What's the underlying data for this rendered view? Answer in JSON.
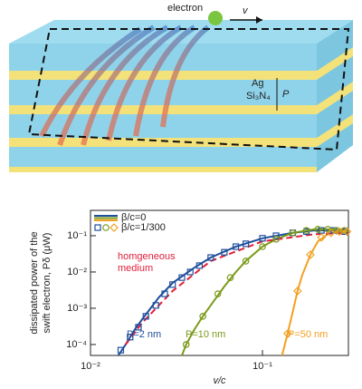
{
  "illustration": {
    "electron": "electron",
    "velocity": "v",
    "layer_metal": "Ag",
    "layer_dielectric": "Si₃N₄",
    "period": "P"
  },
  "chart_data": {
    "type": "line",
    "xlabel": "v/c",
    "ylabel": [
      "dissipated power of the",
      "swift electron, Pδ (μW)"
    ],
    "xscale": "log",
    "yscale": "log",
    "xlim": [
      0.01,
      0.316
    ],
    "ylim": [
      5e-05,
      0.5
    ],
    "xticks": [
      {
        "value": 0.01,
        "label": "10⁻²"
      },
      {
        "value": 0.1,
        "label": "10⁻¹"
      }
    ],
    "yticks": [
      {
        "value": 0.0001,
        "label": "10⁻⁴"
      },
      {
        "value": 0.001,
        "label": "10⁻³"
      },
      {
        "value": 0.01,
        "label": "10⁻²"
      },
      {
        "value": 0.1,
        "label": "10⁻¹"
      }
    ],
    "legend": {
      "lines": "β/c=0",
      "markers": "β/c=1/300",
      "corner": "upper left"
    },
    "series": [
      {
        "name": "P=2 nm",
        "color": "#1f4e9c",
        "style": "solid",
        "x": [
          0.0145,
          0.016,
          0.018,
          0.02,
          0.025,
          0.03,
          0.04,
          0.05,
          0.07,
          0.1,
          0.15,
          0.2,
          0.25,
          0.3,
          0.316
        ],
        "values": [
          5e-05,
          0.0001,
          0.00025,
          0.0005,
          0.002,
          0.005,
          0.013,
          0.025,
          0.05,
          0.085,
          0.12,
          0.14,
          0.14,
          0.13,
          0.12
        ]
      },
      {
        "name": "P=10 nm",
        "color": "#7a9a1a",
        "style": "solid",
        "x": [
          0.034,
          0.036,
          0.04,
          0.045,
          0.05,
          0.06,
          0.07,
          0.08,
          0.1,
          0.12,
          0.15,
          0.2,
          0.25,
          0.3,
          0.316
        ],
        "values": [
          5e-05,
          0.0001,
          0.00025,
          0.0006,
          0.0012,
          0.004,
          0.01,
          0.02,
          0.05,
          0.08,
          0.12,
          0.15,
          0.15,
          0.14,
          0.13
        ]
      },
      {
        "name": "P=50 nm",
        "color": "#f2a020",
        "style": "solid",
        "x": [
          0.13,
          0.14,
          0.15,
          0.16,
          0.17,
          0.19,
          0.21,
          0.24,
          0.27,
          0.3,
          0.316
        ],
        "values": [
          5e-05,
          0.0002,
          0.0008,
          0.003,
          0.008,
          0.03,
          0.07,
          0.11,
          0.13,
          0.13,
          0.13
        ]
      },
      {
        "name": [
          "homgeneous",
          "medium"
        ],
        "color": "#e0203a",
        "style": "dashed",
        "x": [
          0.016,
          0.02,
          0.03,
          0.05,
          0.1,
          0.2,
          0.316
        ],
        "values": [
          0.0001,
          0.0004,
          0.003,
          0.02,
          0.07,
          0.11,
          0.12
        ]
      }
    ],
    "marker_series": [
      {
        "color": "#1f4e9c",
        "marker": "square",
        "x": [
          0.015,
          0.017,
          0.019,
          0.021,
          0.024,
          0.027,
          0.03,
          0.034,
          0.038,
          0.043,
          0.05,
          0.06,
          0.07,
          0.08,
          0.1,
          0.12,
          0.15,
          0.18,
          0.22,
          0.26,
          0.3
        ],
        "values": [
          7e-05,
          0.00016,
          0.0003,
          0.0006,
          0.0012,
          0.0025,
          0.0045,
          0.007,
          0.01,
          0.015,
          0.025,
          0.035,
          0.05,
          0.06,
          0.085,
          0.1,
          0.12,
          0.13,
          0.14,
          0.14,
          0.13
        ]
      },
      {
        "color": "#7a9a1a",
        "marker": "circle",
        "x": [
          0.036,
          0.045,
          0.055,
          0.065,
          0.08,
          0.1,
          0.12,
          0.15,
          0.18,
          0.21,
          0.24,
          0.27,
          0.3
        ],
        "values": [
          0.0001,
          0.0006,
          0.0025,
          0.007,
          0.02,
          0.05,
          0.08,
          0.12,
          0.14,
          0.15,
          0.15,
          0.14,
          0.14
        ]
      },
      {
        "color": "#f2a020",
        "marker": "diamond",
        "x": [
          0.14,
          0.16,
          0.19,
          0.22,
          0.25,
          0.28,
          0.31
        ],
        "values": [
          0.0002,
          0.003,
          0.03,
          0.09,
          0.12,
          0.13,
          0.13
        ]
      }
    ]
  }
}
